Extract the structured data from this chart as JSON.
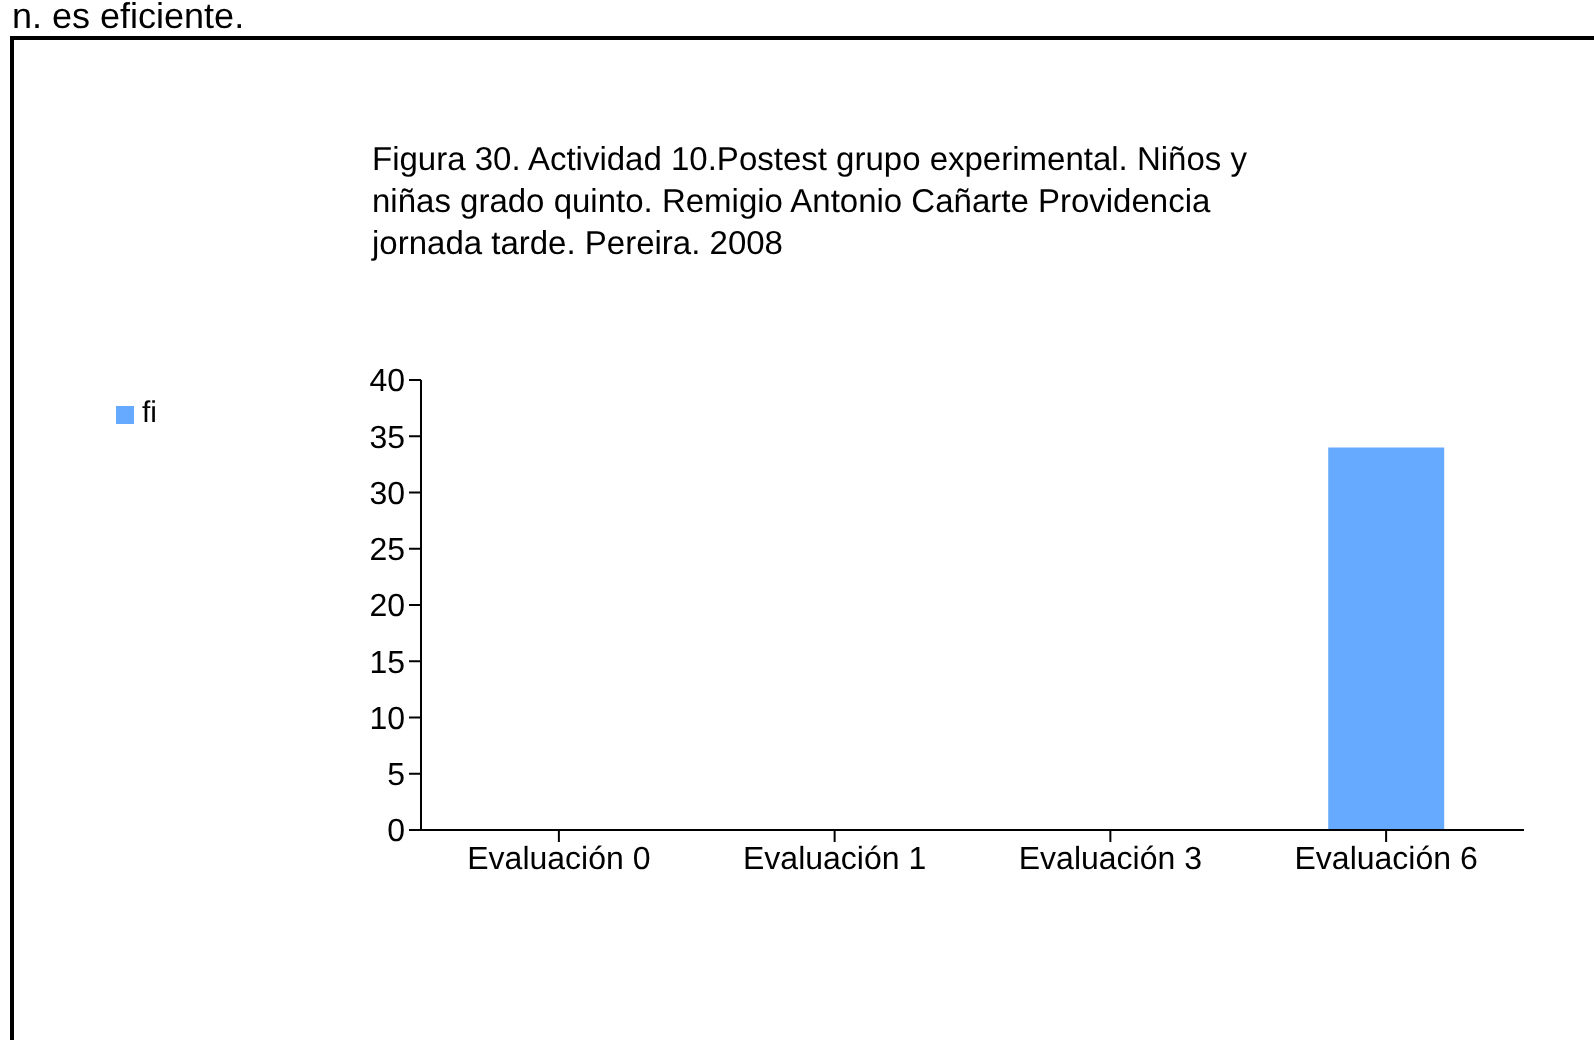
{
  "chart_data": {
    "type": "bar",
    "title": "Figura 30. Actividad 10.Postest grupo experimental. Niños y  niñas grado quinto. Remigio Antonio Cañarte Providencia jornada tarde. Pereira. 2008",
    "annotations": [
      "n. es eficiente."
    ],
    "categories": [
      "Evaluación 0",
      "Evaluación 1",
      "Evaluación 3",
      "Evaluación 6"
    ],
    "series": [
      {
        "name": "fi",
        "color": "#66aaff",
        "values": [
          0,
          0,
          0,
          34
        ]
      }
    ],
    "ylim": [
      0,
      40
    ],
    "yticks": [
      0,
      5,
      10,
      15,
      20,
      25,
      30,
      35,
      40
    ],
    "grid": false,
    "legend": "left"
  }
}
